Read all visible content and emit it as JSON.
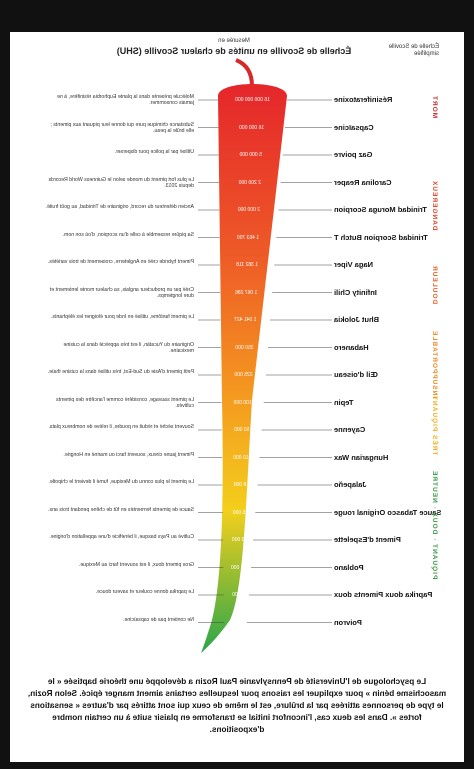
{
  "header": {
    "legend_title": "Échelle de Scoville simplifiée",
    "subtitle": "Mesurée en",
    "title": "Échelle de Scoville en unités de chaleur Scoville (SHU)"
  },
  "scale": [
    {
      "label": "MORT",
      "color": "#c62828"
    },
    {
      "label": "DANGEREUX",
      "color": "#e0442a"
    },
    {
      "label": "DOULEUR",
      "color": "#e8622a"
    },
    {
      "label": "INSUPPORTABLE",
      "color": "#ef8a22"
    },
    {
      "label": "TRÈS PIQUANT",
      "color": "#f2b01e"
    },
    {
      "label": "PIQUANT · DOUX · NEUTRE",
      "color": "#3a9a48"
    }
  ],
  "rows": [
    {
      "name": "Résiniferatoxine",
      "shu": "16 000 000 000",
      "text": "Molécule présente dans la plante Euphorbia résinifère, à ne jamais consommer."
    },
    {
      "name": "Capsaïcine",
      "shu": "16 000 000",
      "text": "Substance chimique pure qui donne leur piquant aux piments ; elle brûle la peau."
    },
    {
      "name": "Gaz poivre",
      "shu": "5 000 000",
      "text": "Utilisé par la police pour disperser."
    },
    {
      "name": "Carolina Reaper",
      "shu": "2 200 000",
      "text": "Le plus fort piment du monde selon le Guinness World Records depuis 2013."
    },
    {
      "name": "Trinidad Moruga Scorpion",
      "shu": "2 000 000",
      "text": "Ancien détenteur du record, originaire de Trinidad, au goût fruité."
    },
    {
      "name": "Trinidad Scorpion Butch T",
      "shu": "1 463 700",
      "text": "Sa piqûre ressemble à celle d'un scorpion, d'où son nom."
    },
    {
      "name": "Naga Viper",
      "shu": "1 382 118",
      "text": "Piment hybride créé en Angleterre, croisement de trois variétés."
    },
    {
      "name": "Infinity Chili",
      "shu": "1 067 286",
      "text": "Créé par un producteur anglais, sa chaleur monte lentement et dure longtemps."
    },
    {
      "name": "Bhut Jolokia",
      "shu": "1 041 427",
      "text": "Le piment fantôme, utilisé en Inde pour éloigner les éléphants."
    },
    {
      "name": "Habanero",
      "shu": "350 000",
      "text": "Originaire du Yucatán, il est très apprécié dans la cuisine mexicaine."
    },
    {
      "name": "Œil d'oiseau",
      "shu": "225 000",
      "text": "Petit piment d'Asie du Sud-Est, très utilisé dans la cuisine thaïe."
    },
    {
      "name": "Tepin",
      "shu": "100 000",
      "text": "Le piment sauvage, considéré comme l'ancêtre des piments cultivés."
    },
    {
      "name": "Cayenne",
      "shu": "50 000",
      "text": "Souvent séché et réduit en poudre, il relève de nombreux plats."
    },
    {
      "name": "Hungarian Wax",
      "shu": "10 000",
      "text": "Piment jaune cireux, souvent farci ou mariné en Hongrie."
    },
    {
      "name": "Jalapeño",
      "shu": "8 000",
      "text": "Le piment le plus connu du Mexique, fumé il devient le chipotle."
    },
    {
      "name": "Sauce Tabasco Original rouge",
      "shu": "5 000",
      "text": "Sauce de piments fermentés en fût de chêne pendant trois ans."
    },
    {
      "name": "Piment d'Espelette",
      "shu": "3 000",
      "text": "Cultivé au Pays basque, il bénéficie d'une appellation d'origine."
    },
    {
      "name": "Poblano",
      "shu": "2 000",
      "text": "Gros piment doux, il est souvent farci au Mexique."
    },
    {
      "name": "Paprika doux Piments doux",
      "shu": "500",
      "text": "Le paprika donne couleur et saveur douce."
    },
    {
      "name": "Poivron",
      "shu": "0",
      "text": "Ne contient pas de capsaïcine."
    }
  ],
  "footer": {
    "text": "Le psychologue de l'Université de Pennsylvanie Paul Rozin a développé une théorie baptisée « le masochisme bénin » pour expliquer les raisons pour lesquelles certains aiment manger épicé. Selon Rozin, le type de personnes attirées par la brûlure, est le même de ceux qui sont attirés par d'autres « sensations fortes ». Dans les deux cas, l'inconfort initial se transforme en plaisir suite à un certain nombre d'expositions."
  }
}
